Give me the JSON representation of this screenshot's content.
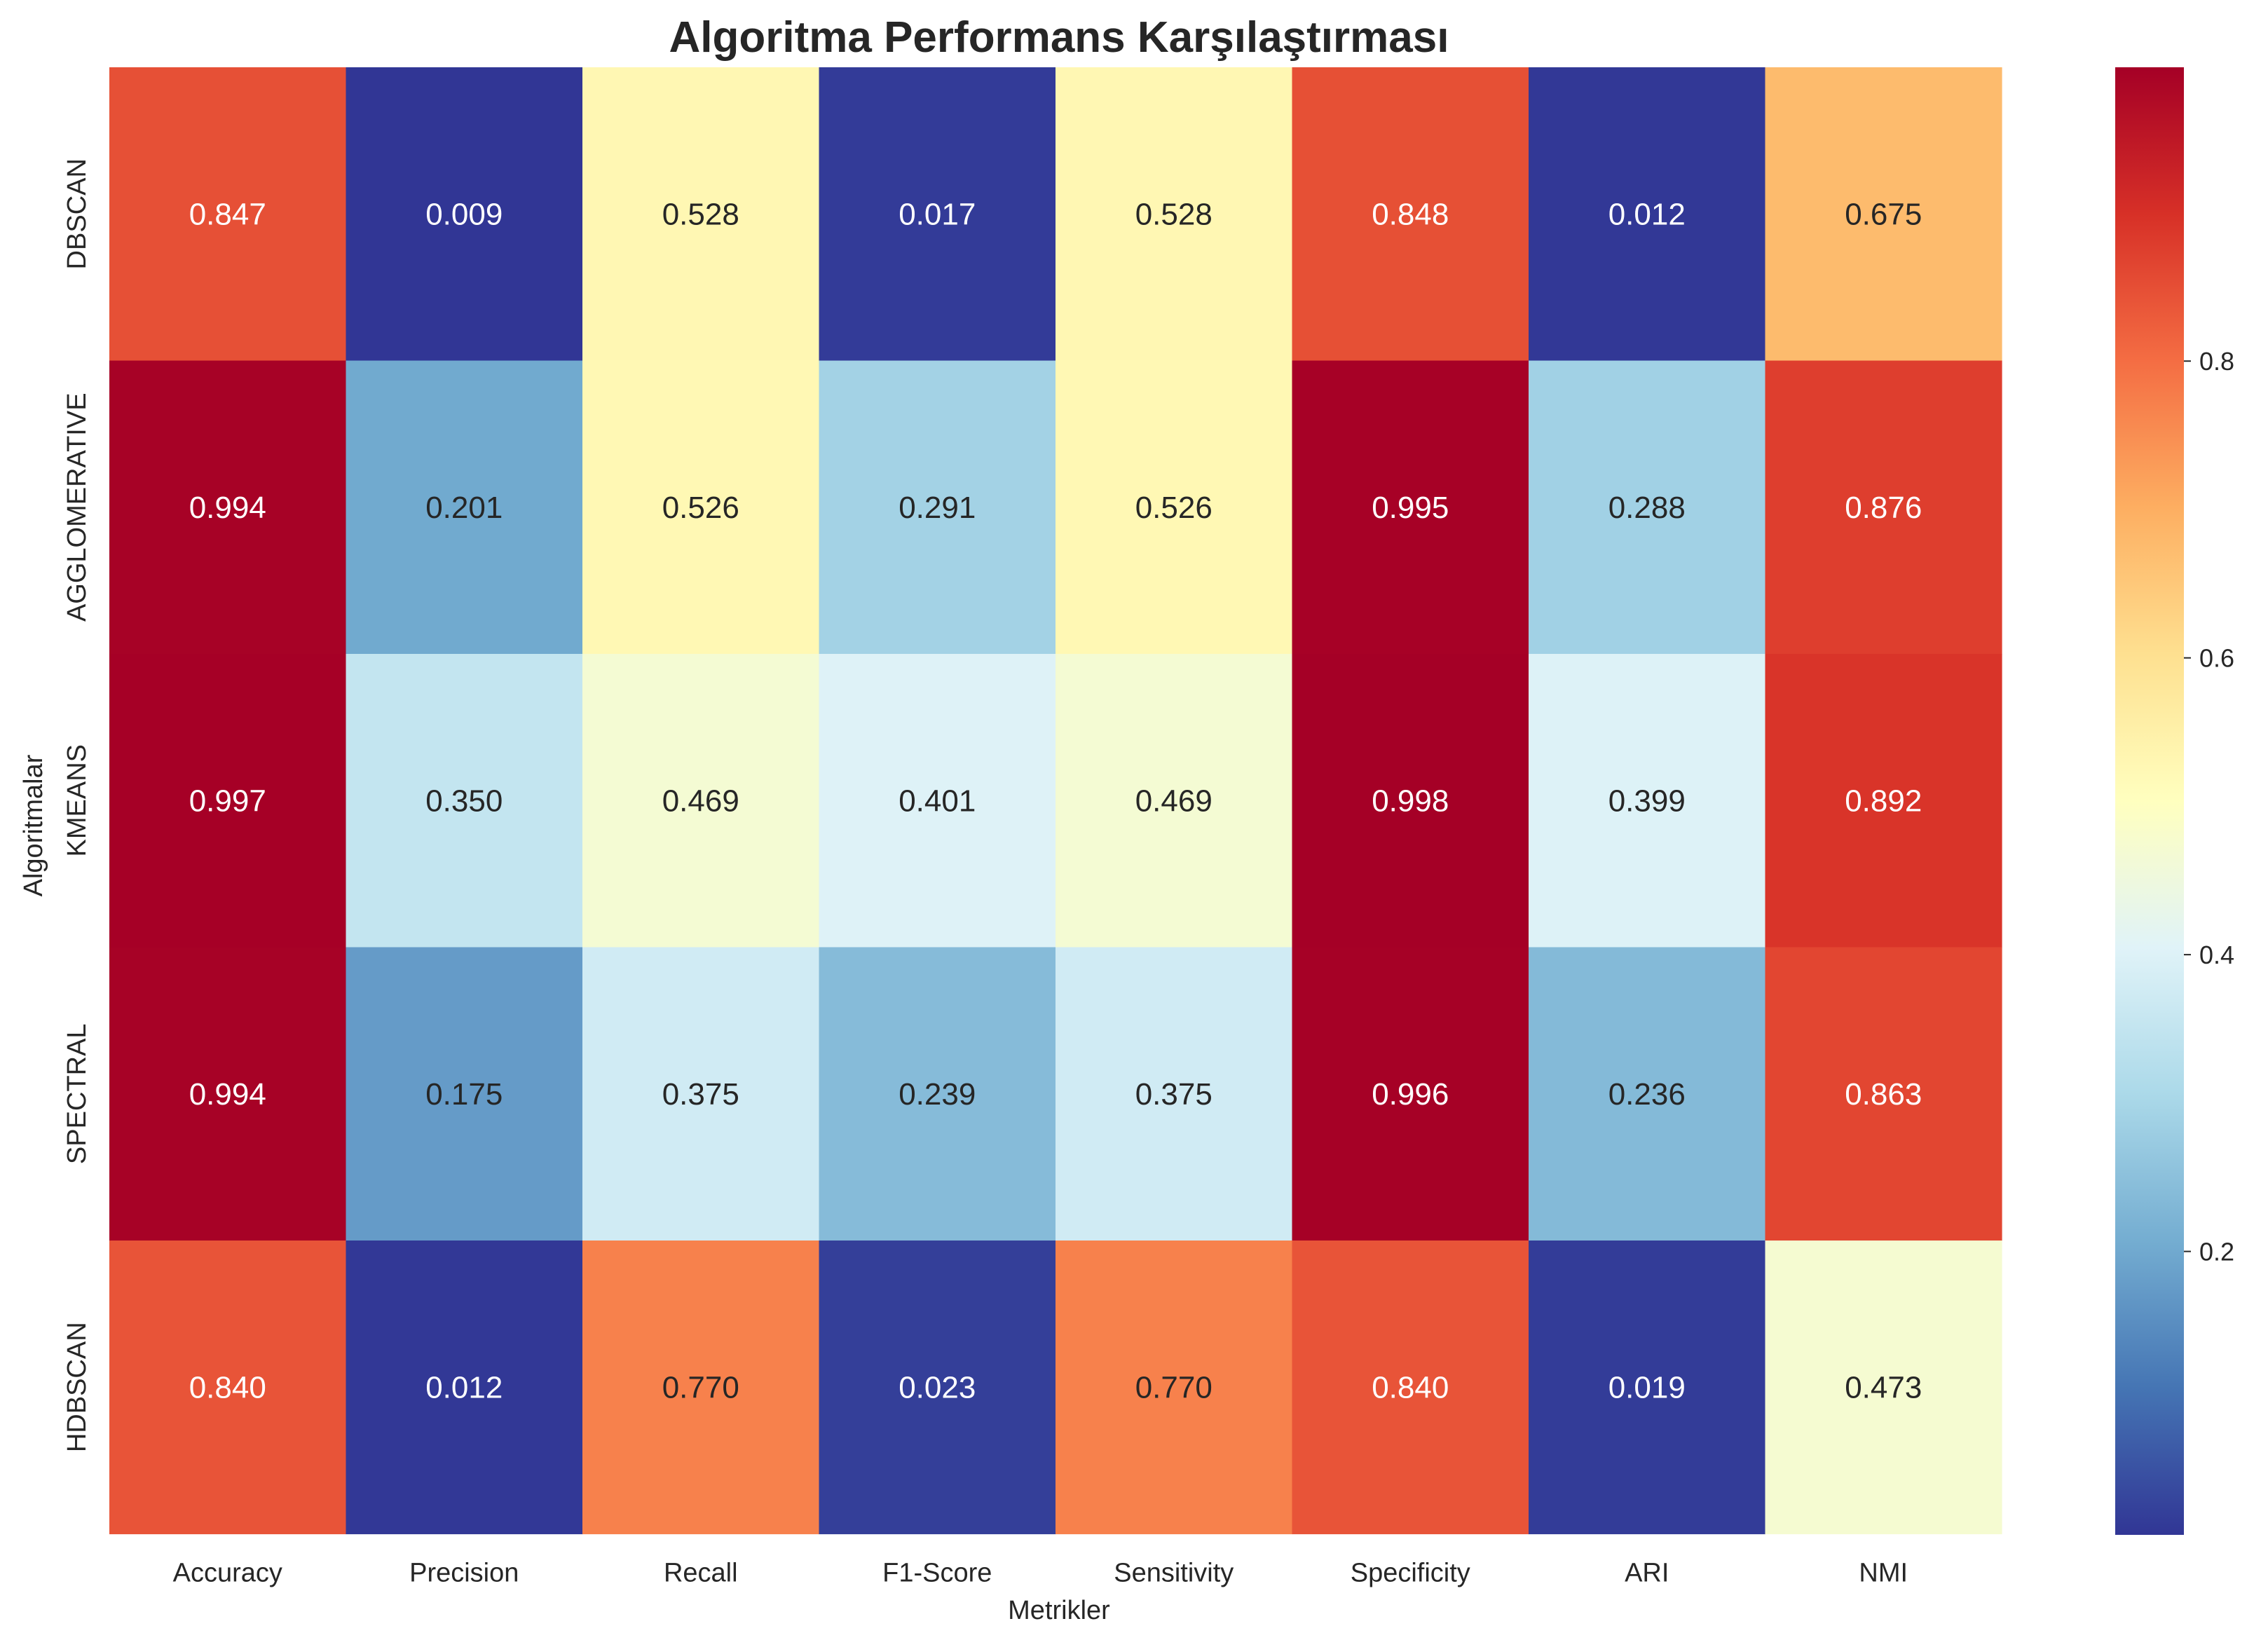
{
  "chart_data": {
    "type": "heatmap",
    "title": "Algoritma Performans Karşılaştırması",
    "xlabel": "Metrikler",
    "ylabel": "Algoritmalar",
    "columns": [
      "Accuracy",
      "Precision",
      "Recall",
      "F1-Score",
      "Sensitivity",
      "Specificity",
      "ARI",
      "NMI"
    ],
    "rows": [
      "DBSCAN",
      "AGGLOMERATIVE",
      "KMEANS",
      "SPECTRAL",
      "HDBSCAN"
    ],
    "values": [
      [
        0.847,
        0.009,
        0.528,
        0.017,
        0.528,
        0.848,
        0.012,
        0.675
      ],
      [
        0.994,
        0.201,
        0.526,
        0.291,
        0.526,
        0.995,
        0.288,
        0.876
      ],
      [
        0.997,
        0.35,
        0.469,
        0.401,
        0.469,
        0.998,
        0.399,
        0.892
      ],
      [
        0.994,
        0.175,
        0.375,
        0.239,
        0.375,
        0.996,
        0.236,
        0.863
      ],
      [
        0.84,
        0.012,
        0.77,
        0.023,
        0.77,
        0.84,
        0.019,
        0.473
      ]
    ],
    "value_labels": [
      [
        "0.847",
        "0.009",
        "0.528",
        "0.017",
        "0.528",
        "0.848",
        "0.012",
        "0.675"
      ],
      [
        "0.994",
        "0.201",
        "0.526",
        "0.291",
        "0.526",
        "0.995",
        "0.288",
        "0.876"
      ],
      [
        "0.997",
        "0.350",
        "0.469",
        "0.401",
        "0.469",
        "0.998",
        "0.399",
        "0.892"
      ],
      [
        "0.994",
        "0.175",
        "0.375",
        "0.239",
        "0.375",
        "0.996",
        "0.236",
        "0.863"
      ],
      [
        "0.840",
        "0.012",
        "0.770",
        "0.023",
        "0.770",
        "0.840",
        "0.019",
        "0.473"
      ]
    ],
    "colormap": "RdYlBu_r",
    "colormap_stops": [
      "#313695",
      "#4575b4",
      "#74add1",
      "#abd9e9",
      "#e0f3f8",
      "#ffffbf",
      "#fee090",
      "#fdae61",
      "#f46d43",
      "#d73027",
      "#a50026"
    ],
    "vmin": 0.009,
    "vmax": 0.998,
    "colorbar_ticks": [
      0.2,
      0.4,
      0.6,
      0.8
    ],
    "colorbar_tick_labels": [
      "0.2",
      "0.4",
      "0.6",
      "0.8"
    ]
  }
}
